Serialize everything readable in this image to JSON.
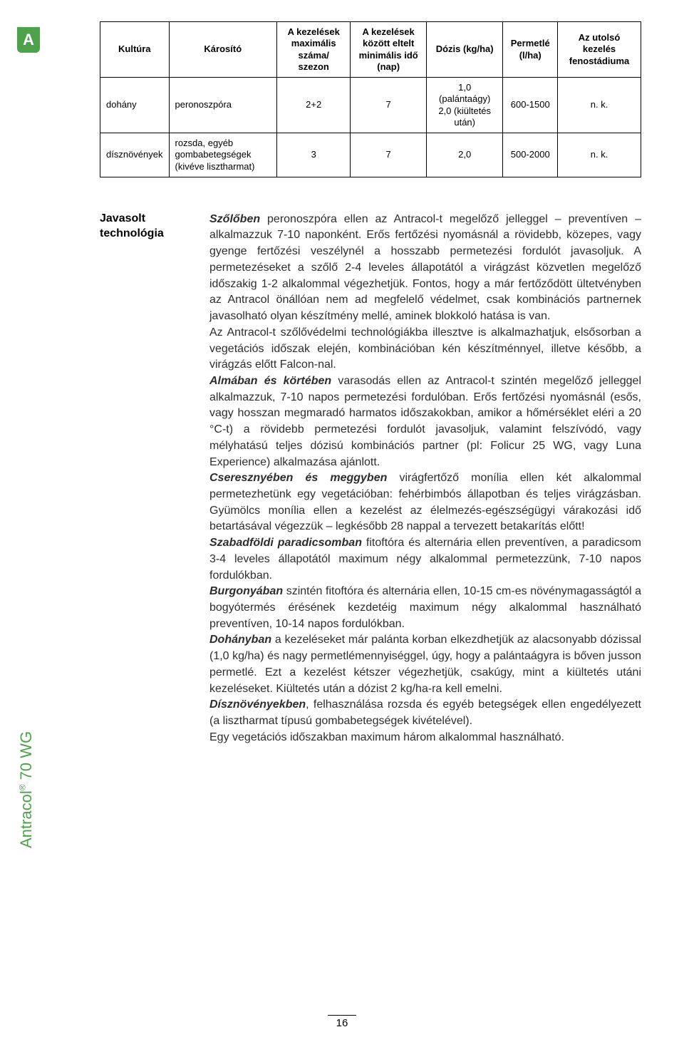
{
  "tab_letter": "A",
  "side_product": "Antracol® 70 WG",
  "table": {
    "headers": [
      "Kultúra",
      "Károsító",
      "A kezelések maximális száma/ szezon",
      "A kezelések között eltelt minimális idő (nap)",
      "Dózis (kg/ha)",
      "Permetlé (l/ha)",
      "Az utolsó kezelés fenostádiuma"
    ],
    "rows": [
      {
        "cells": [
          "dohány",
          "peronoszpóra",
          "2+2",
          "7",
          "1,0 (palántaágy) 2,0 (kiültetés után)",
          "600-1500",
          "n. k."
        ]
      },
      {
        "cells": [
          "dísznövények",
          "rozsda, egyéb gombabetegségek (kivéve lisztharmat)",
          "3",
          "7",
          "2,0",
          "500-2000",
          "n. k."
        ]
      }
    ]
  },
  "section_label": "Javasolt technológia",
  "body": {
    "p1_lead": "Szőlőben",
    "p1_rest": " peronoszpóra ellen az Antracol-t megelőző jelleggel – preventíven – alkalmazzuk 7-10 naponként. Erős fertőzési nyomásnál a rövidebb, közepes, vagy gyenge fertőzési veszélynél a hosszabb permetezési fordulót javasoljuk. A permetezéseket a szőlő 2-4 leveles állapotától a virágzást közvetlen megelőző időszakig 1-2 alkalommal végezhetjük. Fontos, hogy a már fertőződött ültetvényben az Antracol önállóan nem ad megfelelő védelmet, csak kombinációs partnernek javasolható olyan készítmény mellé, aminek blokkoló hatása is van.",
    "p2": "Az Antracol-t szőlővédelmi technológiákba illesztve is alkalmazhatjuk, elsősorban a vegetációs időszak elején, kombinációban kén készítménnyel, illetve később, a virágzás előtt Falcon-nal.",
    "p3_lead": "Almában és körtében",
    "p3_rest": " varasodás ellen az Antracol-t szintén megelőző jelleggel alkalmazzuk, 7-10 napos permetezési fordulóban. Erős fertőzési nyomásnál (esős, vagy hosszan megmaradó harmatos időszakokban, amikor a hőmérséklet eléri a 20 °C-t) a rövidebb permetezési fordulót javasoljuk, valamint felszívódó, vagy mélyhatású teljes dózisú kombinációs partner (pl: Folicur 25 WG, vagy Luna Experience) alkalmazása ajánlott.",
    "p4_lead": "Cseresznyében és meggyben",
    "p4_rest": " virágfertőző monília ellen két alkalommal permetezhetünk egy vegetációban: fehérbimbós állapotban és teljes virágzásban. Gyümölcs monília ellen a kezelést az élelmezés-egészségügyi várakozási idő betartásával végezzük – legkésőbb 28 nappal a tervezett betakarítás előtt!",
    "p5_lead": "Szabadföldi paradicsomban",
    "p5_rest": " fitoftóra és alternária ellen preventíven, a paradicsom 3-4 leveles állapotától maximum négy alkalommal permetezzünk, 7-10 napos fordulókban.",
    "p6_lead": "Burgonyában",
    "p6_rest": " szintén fitoftóra és alternária ellen, 10-15 cm-es növénymagasságtól a bogyótermés érésének kezdetéig maximum négy alkalommal használható preventíven, 10-14 napos fordulókban.",
    "p7_lead": "Dohányban",
    "p7_rest": " a kezeléseket már palánta korban elkezdhetjük az alacsonyabb dózissal (1,0 kg/ha) és nagy permetlémennyiséggel, úgy, hogy a palántaágyra is bőven jusson permetlé. Ezt a kezelést kétszer végezhetjük, csakúgy, mint a kiültetés utáni kezeléseket. Kiültetés után a dózist 2 kg/ha-ra kell emelni.",
    "p8_lead": "Dísznövényekben",
    "p8_rest": ", felhasználása rozsda és egyéb betegségek ellen engedélyezett (a lisztharmat típusú gombabetegségek kivételével).",
    "p9": "Egy vegetációs időszakban maximum három alkalommal használható."
  },
  "page_number": "16"
}
